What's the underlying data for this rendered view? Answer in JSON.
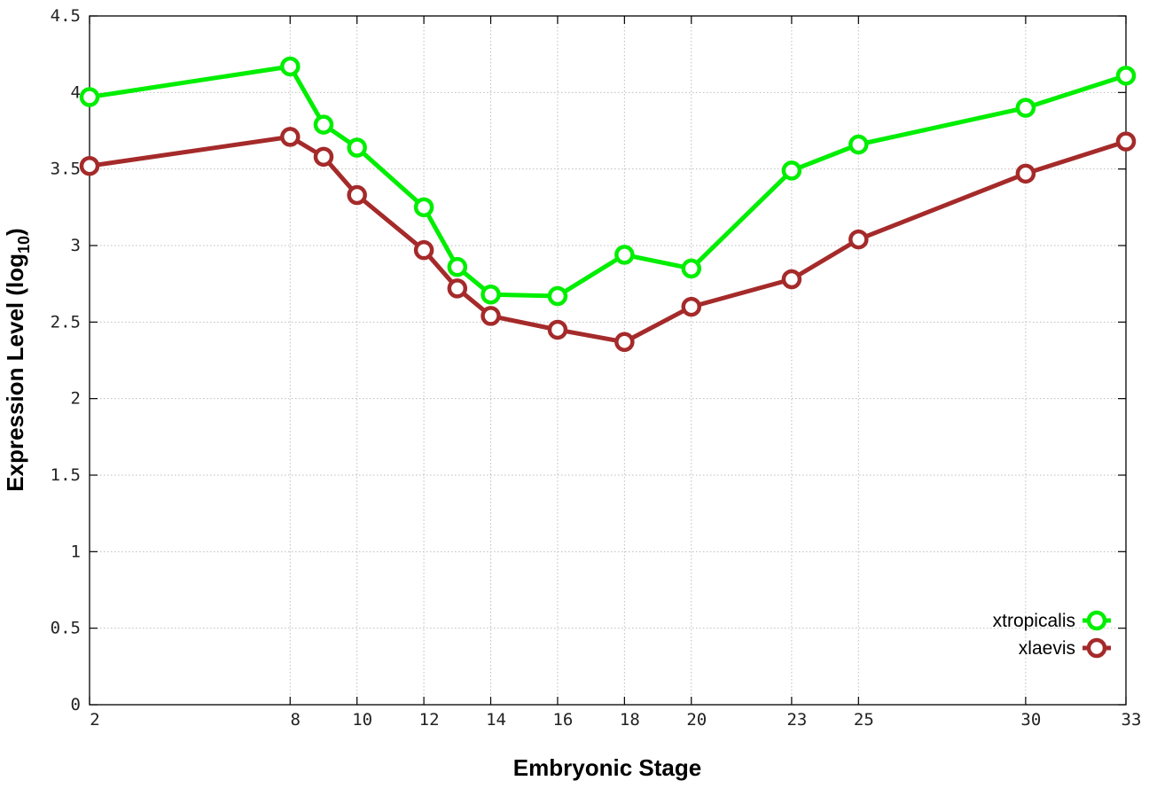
{
  "chart_data": {
    "type": "line",
    "xlabel": "Embryonic Stage",
    "ylabel": {
      "text": "Expression Level (log",
      "subscript": "10",
      "suffix": ")"
    },
    "x": [
      2,
      8,
      9,
      10,
      12,
      13,
      14,
      16,
      18,
      20,
      23,
      25,
      30,
      33
    ],
    "x_ticks": [
      "2",
      "8",
      "10",
      "12",
      "14",
      "16",
      "18",
      "20",
      "23",
      "25",
      "30",
      "33"
    ],
    "xlim": [
      2,
      33
    ],
    "y_ticks": [
      "0",
      "0.5",
      "1",
      "1.5",
      "2",
      "2.5",
      "3",
      "3.5",
      "4",
      "4.5"
    ],
    "ylim": [
      0,
      4.5
    ],
    "grid": true,
    "legend_position": "bottom-right",
    "series": [
      {
        "name": "xtropicalis",
        "color": "#00ee00",
        "values": [
          3.97,
          4.17,
          3.79,
          3.64,
          3.25,
          2.86,
          2.68,
          2.67,
          2.94,
          2.85,
          3.49,
          3.66,
          3.9,
          4.11
        ]
      },
      {
        "name": "xlaevis",
        "color": "#a52a2a",
        "values": [
          3.52,
          3.71,
          3.58,
          3.33,
          2.97,
          2.72,
          2.54,
          2.45,
          2.37,
          2.6,
          2.78,
          3.04,
          3.47,
          3.68
        ]
      }
    ]
  }
}
